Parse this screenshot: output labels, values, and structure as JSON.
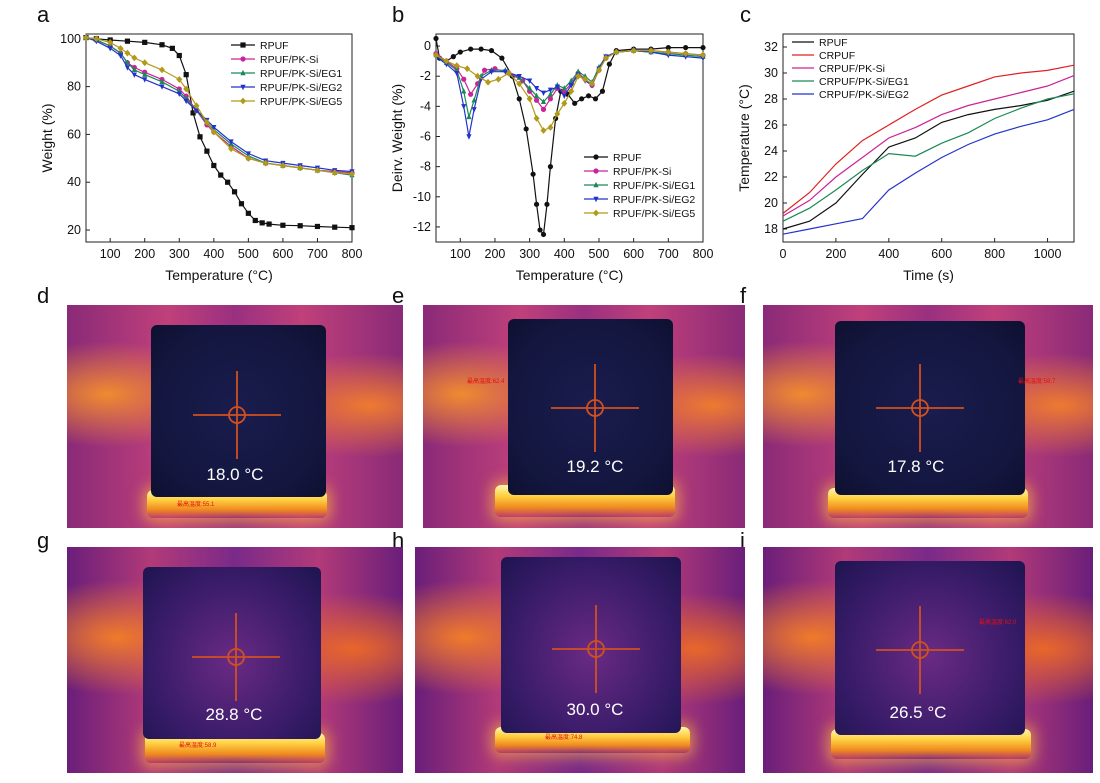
{
  "panels": {
    "a": {
      "letter": "a",
      "chart_data": {
        "type": "line",
        "xlabel": "Temperature (°C)",
        "ylabel": "Weight (%)",
        "xlim": [
          30,
          800
        ],
        "ylim": [
          15,
          102
        ],
        "xticks": [
          100,
          200,
          300,
          400,
          500,
          600,
          700,
          800
        ],
        "yticks": [
          20,
          40,
          60,
          80,
          100
        ],
        "legend_position": "top-right",
        "series": [
          {
            "name": "RPUF",
            "color": "#111111",
            "marker": "square",
            "x": [
              30,
              60,
              100,
              150,
              200,
              250,
              280,
              300,
              320,
              340,
              360,
              380,
              400,
              420,
              440,
              460,
              480,
              500,
              520,
              540,
              560,
              600,
              650,
              700,
              750,
              800
            ],
            "y": [
              100.5,
              100,
              99.5,
              99,
              98.5,
              97.5,
              96,
              93,
              85,
              69,
              59,
              53,
              47,
              43,
              40,
              36,
              31,
              27,
              24,
              23,
              22.5,
              22,
              21.8,
              21.5,
              21.2,
              21
            ]
          },
          {
            "name": "RPUF/PK-Si",
            "color": "#cc2299",
            "marker": "circle",
            "x": [
              30,
              60,
              100,
              130,
              150,
              170,
              200,
              250,
              300,
              320,
              350,
              380,
              400,
              450,
              500,
              550,
              600,
              650,
              700,
              750,
              800
            ],
            "y": [
              100.5,
              99.5,
              97,
              94,
              90,
              88,
              86,
              83,
              79,
              76,
              70,
              64,
              61,
              55,
              50,
              48,
              47,
              46,
              45,
              44.5,
              44
            ]
          },
          {
            "name": "RPUF/PK-Si/EG1",
            "color": "#1a8a55",
            "marker": "triangle",
            "x": [
              30,
              60,
              100,
              130,
              150,
              170,
              200,
              250,
              300,
              320,
              350,
              380,
              400,
              450,
              500,
              550,
              600,
              650,
              700,
              750,
              800
            ],
            "y": [
              100.5,
              99.5,
              97,
              94,
              90,
              87,
              85,
              82,
              78,
              75,
              70,
              65,
              62,
              56,
              51,
              48,
              47,
              46,
              45,
              44,
              43
            ]
          },
          {
            "name": "RPUF/PK-Si/EG2",
            "color": "#2233cc",
            "marker": "triangle-down",
            "x": [
              30,
              60,
              100,
              130,
              150,
              170,
              200,
              250,
              300,
              320,
              350,
              380,
              400,
              450,
              500,
              550,
              600,
              650,
              700,
              750,
              800
            ],
            "y": [
              100.5,
              99,
              96,
              93,
              88,
              85,
              83,
              80,
              77,
              74,
              70,
              66,
              63,
              57,
              52,
              49,
              48,
              47,
              46,
              45,
              44.5
            ]
          },
          {
            "name": "RPUF/PK-Si/EG5",
            "color": "#b09a18",
            "marker": "diamond",
            "x": [
              30,
              60,
              100,
              130,
              150,
              170,
              200,
              250,
              300,
              320,
              350,
              380,
              400,
              450,
              500,
              550,
              600,
              650,
              700,
              750,
              800
            ],
            "y": [
              100.5,
              100,
              98.5,
              96,
              94,
              92,
              90,
              87,
              83,
              79,
              72,
              65,
              61,
              54,
              50,
              48,
              47,
              46,
              45,
              44,
              43.5
            ]
          }
        ]
      }
    },
    "b": {
      "letter": "b",
      "chart_data": {
        "type": "line",
        "xlabel": "Temperature (°C)",
        "ylabel": "Deirv. Weight (%)",
        "xlim": [
          30,
          800
        ],
        "ylim": [
          -13,
          0.8
        ],
        "xticks": [
          100,
          200,
          300,
          400,
          500,
          600,
          700,
          800
        ],
        "yticks": [
          0,
          -2,
          -4,
          -6,
          -8,
          -10,
          -12
        ],
        "legend_position": "bottom-right",
        "series": [
          {
            "name": "RPUF",
            "color": "#111111",
            "marker": "circle",
            "x": [
              30,
              40,
              60,
              80,
              100,
              130,
              160,
              190,
              220,
              250,
              270,
              290,
              310,
              320,
              330,
              340,
              350,
              360,
              375,
              390,
              410,
              430,
              450,
              470,
              490,
              510,
              530,
              550,
              600,
              650,
              700,
              750,
              800
            ],
            "y": [
              0.5,
              -0.8,
              -1.0,
              -0.7,
              -0.4,
              -0.2,
              -0.2,
              -0.3,
              -0.8,
              -2.0,
              -3.5,
              -5.5,
              -8.5,
              -10.5,
              -12.2,
              -12.5,
              -10.5,
              -8.0,
              -4.8,
              -3.0,
              -3.2,
              -3.8,
              -3.5,
              -3.3,
              -3.5,
              -3.0,
              -1.2,
              -0.3,
              -0.2,
              -0.2,
              -0.1,
              -0.1,
              -0.1
            ]
          },
          {
            "name": "RPUF/PK-Si",
            "color": "#cc2299",
            "marker": "circle",
            "x": [
              30,
              60,
              90,
              110,
              130,
              150,
              170,
              200,
              240,
              280,
              300,
              320,
              340,
              360,
              380,
              400,
              420,
              440,
              460,
              480,
              500,
              520,
              550,
              600,
              650,
              700,
              750,
              800
            ],
            "y": [
              -0.5,
              -1.0,
              -1.5,
              -2.2,
              -3.2,
              -2.5,
              -1.6,
              -1.5,
              -1.8,
              -2.3,
              -3.0,
              -3.6,
              -4.2,
              -3.5,
              -2.8,
              -3.0,
              -2.5,
              -1.8,
              -2.2,
              -2.6,
              -1.6,
              -0.8,
              -0.4,
              -0.3,
              -0.3,
              -0.4,
              -0.5,
              -0.6
            ]
          },
          {
            "name": "RPUF/PK-Si/EG1",
            "color": "#1a8a55",
            "marker": "triangle",
            "x": [
              30,
              60,
              90,
              110,
              125,
              140,
              160,
              190,
              230,
              270,
              300,
              320,
              340,
              360,
              380,
              400,
              420,
              440,
              460,
              480,
              500,
              520,
              550,
              600,
              650,
              700,
              750,
              800
            ],
            "y": [
              -0.6,
              -1.1,
              -1.6,
              -3.0,
              -4.7,
              -3.6,
              -2.0,
              -1.6,
              -1.6,
              -2.1,
              -2.8,
              -3.3,
              -3.7,
              -3.2,
              -2.6,
              -2.8,
              -2.3,
              -1.7,
              -2.0,
              -2.4,
              -1.4,
              -0.7,
              -0.4,
              -0.3,
              -0.4,
              -0.5,
              -0.6,
              -0.7
            ]
          },
          {
            "name": "RPUF/PK-Si/EG2",
            "color": "#2233cc",
            "marker": "triangle-down",
            "x": [
              30,
              60,
              90,
              110,
              125,
              140,
              160,
              190,
              230,
              270,
              300,
              320,
              340,
              360,
              380,
              400,
              420,
              440,
              460,
              480,
              500,
              520,
              550,
              600,
              650,
              700,
              750,
              800
            ],
            "y": [
              -0.7,
              -1.2,
              -1.8,
              -4.0,
              -6.0,
              -4.2,
              -2.2,
              -1.7,
              -1.7,
              -2.0,
              -2.3,
              -2.8,
              -3.1,
              -2.9,
              -2.7,
              -3.3,
              -2.6,
              -1.9,
              -2.3,
              -2.6,
              -1.5,
              -0.7,
              -0.4,
              -0.3,
              -0.4,
              -0.6,
              -0.7,
              -0.8
            ]
          },
          {
            "name": "RPUF/PK-Si/EG5",
            "color": "#b09a18",
            "marker": "diamond",
            "x": [
              30,
              60,
              90,
              120,
              150,
              180,
              210,
              240,
              270,
              300,
              320,
              340,
              360,
              380,
              400,
              420,
              440,
              460,
              480,
              500,
              520,
              550,
              600,
              650,
              700,
              750,
              800
            ],
            "y": [
              -0.6,
              -1.0,
              -1.3,
              -1.5,
              -2.0,
              -2.4,
              -2.2,
              -1.8,
              -2.5,
              -3.5,
              -4.8,
              -5.6,
              -5.4,
              -4.5,
              -3.8,
              -3.0,
              -2.0,
              -2.2,
              -2.5,
              -1.6,
              -0.8,
              -0.4,
              -0.3,
              -0.3,
              -0.4,
              -0.5,
              -0.6
            ]
          }
        ]
      }
    },
    "c": {
      "letter": "c",
      "chart_data": {
        "type": "line",
        "xlabel": "Time (s)",
        "ylabel": "Temperature (°C)",
        "xlim": [
          0,
          1100
        ],
        "ylim": [
          17,
          33
        ],
        "xticks": [
          0,
          200,
          400,
          600,
          800,
          1000
        ],
        "yticks": [
          18,
          20,
          22,
          24,
          26,
          28,
          30,
          32
        ],
        "legend_position": "top-left",
        "series": [
          {
            "name": "RPUF",
            "color": "#111111",
            "x": [
              0,
              100,
              200,
              300,
              400,
              500,
              600,
              700,
              800,
              900,
              1000,
              1100
            ],
            "y": [
              18.0,
              18.6,
              20.0,
              22.2,
              24.3,
              25.0,
              26.2,
              26.8,
              27.2,
              27.5,
              27.9,
              28.6
            ]
          },
          {
            "name": "CRPUF",
            "color": "#e02020",
            "x": [
              0,
              100,
              200,
              300,
              400,
              500,
              600,
              700,
              800,
              900,
              1000,
              1100
            ],
            "y": [
              19.2,
              20.8,
              23.0,
              24.8,
              26.0,
              27.2,
              28.3,
              29.0,
              29.7,
              30.0,
              30.2,
              30.6
            ]
          },
          {
            "name": "CRPUF/PK-Si",
            "color": "#cc2299",
            "x": [
              0,
              100,
              200,
              300,
              400,
              500,
              600,
              700,
              800,
              900,
              1000,
              1100
            ],
            "y": [
              19.0,
              20.2,
              22.0,
              23.5,
              25.0,
              25.8,
              26.8,
              27.5,
              28.0,
              28.5,
              29.0,
              29.8
            ]
          },
          {
            "name": "CRPUF/PK-Si/EG1",
            "color": "#1a8a55",
            "x": [
              0,
              100,
              200,
              300,
              400,
              500,
              600,
              700,
              800,
              900,
              1000,
              1100
            ],
            "y": [
              18.6,
              19.6,
              21.0,
              22.5,
              23.8,
              23.6,
              24.6,
              25.4,
              26.5,
              27.3,
              28.0,
              28.4
            ]
          },
          {
            "name": "CRPUF/PK-Si/EG2",
            "color": "#2233cc",
            "x": [
              0,
              100,
              200,
              300,
              400,
              500,
              600,
              700,
              800,
              900,
              1000,
              1100
            ],
            "y": [
              17.6,
              18.0,
              18.4,
              18.8,
              21.0,
              22.3,
              23.5,
              24.5,
              25.3,
              25.9,
              26.4,
              27.2
            ]
          }
        ]
      }
    }
  },
  "thermal_images": [
    {
      "letter": "d",
      "temperature": "18.0 °C",
      "hot_label": "最高温度:55.1",
      "state": "cold"
    },
    {
      "letter": "e",
      "temperature": "19.2 °C",
      "hot_label": "最高温度:62.4",
      "state": "cold"
    },
    {
      "letter": "f",
      "temperature": "17.8 °C",
      "hot_label": "最高温度:58.7",
      "state": "cold"
    },
    {
      "letter": "g",
      "temperature": "28.8 °C",
      "hot_label": "最高温度:58.9",
      "state": "warm"
    },
    {
      "letter": "h",
      "temperature": "30.0 °C",
      "hot_label": "最高温度:74.8",
      "state": "warm"
    },
    {
      "letter": "i",
      "temperature": "26.5 °C",
      "hot_label": "最高温度:62.0",
      "state": "warm"
    }
  ]
}
